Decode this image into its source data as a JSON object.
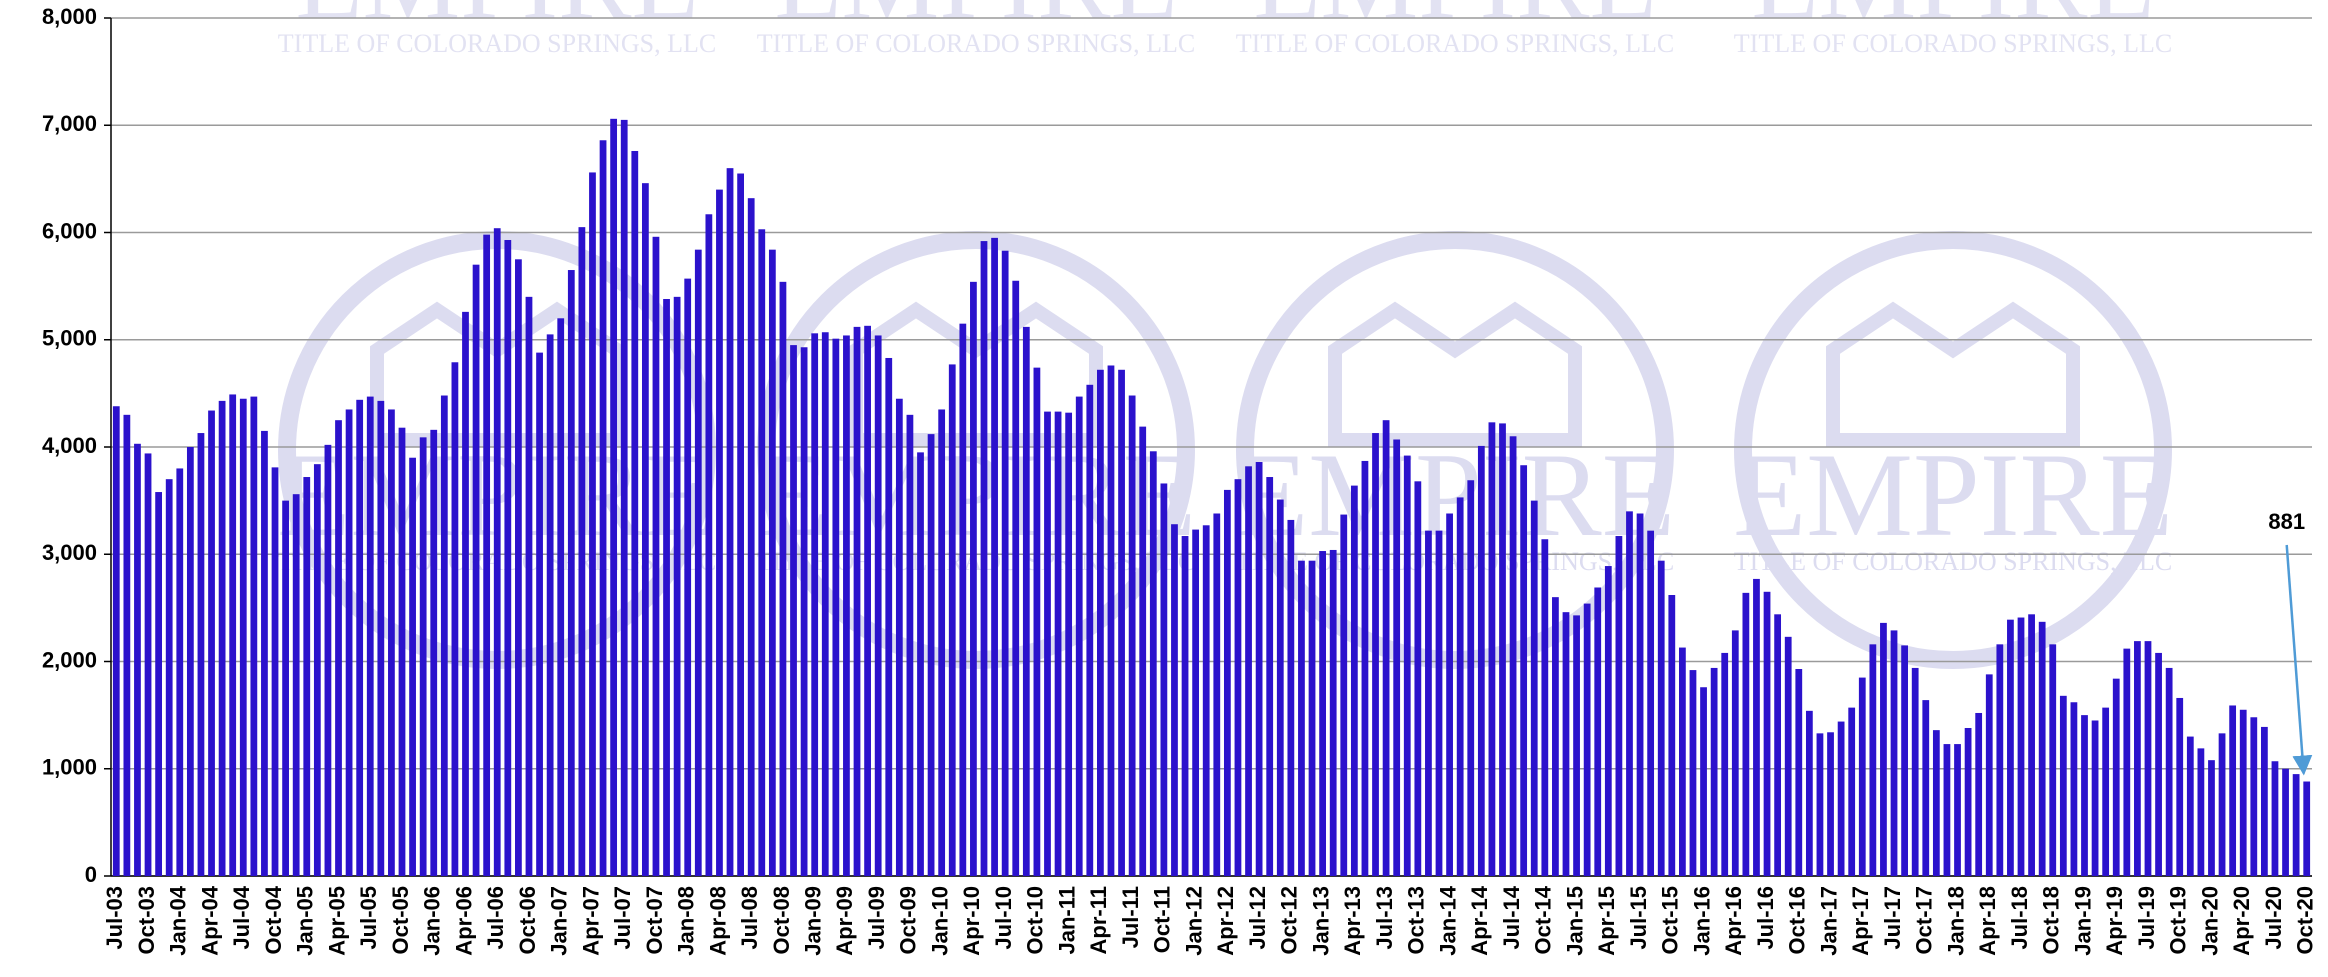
{
  "chart_data": {
    "type": "bar",
    "watermark": {
      "name": "EMPIRE",
      "sub": "TITLE OF COLORADO SPRINGS, LLC"
    },
    "annotation": "881",
    "color": "#2b12cc",
    "grid": true,
    "ylim": [
      0,
      8000
    ],
    "yticks": [
      0,
      {
        "value": 1000,
        "label": "1,000"
      },
      {
        "value": 2000,
        "label": "2,000"
      },
      {
        "value": 3000,
        "label": "3,000"
      },
      {
        "value": 4000,
        "label": "4,000"
      },
      {
        "value": 5000,
        "label": "5,000"
      },
      {
        "value": 6000,
        "label": "6,000"
      },
      {
        "value": 7000,
        "label": "7,000"
      },
      {
        "value": 8000,
        "label": "8,000"
      }
    ],
    "categories": [
      "Jul-03",
      null,
      null,
      "Oct-03",
      null,
      null,
      "Jan-04",
      null,
      null,
      "Apr-04",
      null,
      null,
      "Jul-04",
      null,
      null,
      "Oct-04",
      null,
      null,
      "Jan-05",
      null,
      null,
      "Apr-05",
      null,
      null,
      "Jul-05",
      null,
      null,
      "Oct-05",
      null,
      null,
      "Jan-06",
      null,
      null,
      "Apr-06",
      null,
      null,
      "Jul-06",
      null,
      null,
      "Oct-06",
      null,
      null,
      "Jan-07",
      null,
      null,
      "Apr-07",
      null,
      null,
      "Jul-07",
      null,
      null,
      "Oct-07",
      null,
      null,
      "Jan-08",
      null,
      null,
      "Apr-08",
      null,
      null,
      "Jul-08",
      null,
      null,
      "Oct-08",
      null,
      null,
      "Jan-09",
      null,
      null,
      "Apr-09",
      null,
      null,
      "Jul-09",
      null,
      null,
      "Oct-09",
      null,
      null,
      "Jan-10",
      null,
      null,
      "Apr-10",
      null,
      null,
      "Jul-10",
      null,
      null,
      "Oct-10",
      null,
      null,
      "Jan-11",
      null,
      null,
      "Apr-11",
      null,
      null,
      "Jul-11",
      null,
      null,
      "Oct-11",
      null,
      null,
      "Jan-12",
      null,
      null,
      "Apr-12",
      null,
      null,
      "Jul-12",
      null,
      null,
      "Oct-12",
      null,
      null,
      "Jan-13",
      null,
      null,
      "Apr-13",
      null,
      null,
      "Jul-13",
      null,
      null,
      "Oct-13",
      null,
      null,
      "Jan-14",
      null,
      null,
      "Apr-14",
      null,
      null,
      "Jul-14",
      null,
      null,
      "Oct-14",
      null,
      null,
      "Jan-15",
      null,
      null,
      "Apr-15",
      null,
      null,
      "Jul-15",
      null,
      null,
      "Oct-15",
      null,
      null,
      "Jan-16",
      null,
      null,
      "Apr-16",
      null,
      null,
      "Jul-16",
      null,
      null,
      "Oct-16",
      null,
      null,
      "Jan-17",
      null,
      null,
      "Apr-17",
      null,
      null,
      "Jul-17",
      null,
      null,
      "Oct-17",
      null,
      null,
      "Jan-18",
      null,
      null,
      "Apr-18",
      null,
      null,
      "Jul-18",
      null,
      null,
      "Oct-18",
      null,
      null,
      "Jan-19",
      null,
      null,
      "Apr-19",
      null,
      null,
      "Jul-19",
      null,
      null,
      "Oct-19",
      null,
      null,
      "Jan-20",
      null,
      null,
      "Apr-20",
      null,
      null,
      "Jul-20",
      null,
      null,
      "Oct-20"
    ],
    "values": [
      4380,
      4300,
      4030,
      3940,
      3580,
      3700,
      3800,
      4000,
      4130,
      4340,
      4430,
      4490,
      4450,
      4470,
      4150,
      3810,
      3500,
      3560,
      3720,
      3840,
      4020,
      4250,
      4350,
      4440,
      4470,
      4430,
      4350,
      4180,
      3900,
      4090,
      4160,
      4480,
      4790,
      5260,
      5700,
      5980,
      6040,
      5930,
      5750,
      5400,
      4880,
      5050,
      5200,
      5650,
      6050,
      6560,
      6860,
      7060,
      7050,
      6760,
      6460,
      5960,
      5380,
      5400,
      5570,
      5840,
      6170,
      6400,
      6600,
      6550,
      6320,
      6030,
      5840,
      5540,
      4950,
      4930,
      5060,
      5070,
      5010,
      5040,
      5120,
      5130,
      5040,
      4830,
      4450,
      4300,
      3950,
      4120,
      4350,
      4770,
      5150,
      5540,
      5920,
      5950,
      5830,
      5550,
      5120,
      4740,
      4330,
      4330,
      4320,
      4470,
      4580,
      4720,
      4760,
      4720,
      4480,
      4190,
      3960,
      3660,
      3280,
      3170,
      3230,
      3270,
      3380,
      3600,
      3700,
      3820,
      3860,
      3720,
      3510,
      3320,
      2940,
      2940,
      3030,
      3040,
      3370,
      3640,
      3870,
      4130,
      4250,
      4070,
      3920,
      3680,
      3220,
      3220,
      3380,
      3530,
      3690,
      4010,
      4230,
      4220,
      4100,
      3830,
      3500,
      3140,
      2600,
      2460,
      2430,
      2540,
      2690,
      2890,
      3170,
      3400,
      3380,
      3220,
      2940,
      2620,
      2130,
      1920,
      1760,
      1940,
      2080,
      2290,
      2640,
      2770,
      2650,
      2440,
      2230,
      1930,
      1540,
      1330,
      1340,
      1440,
      1570,
      1850,
      2160,
      2360,
      2290,
      2150,
      1940,
      1640,
      1360,
      1230,
      1230,
      1380,
      1520,
      1880,
      2160,
      2390,
      2410,
      2440,
      2370,
      2160,
      1680,
      1620,
      1500,
      1450,
      1570,
      1840,
      2120,
      2190,
      2190,
      2080,
      1940,
      1660,
      1300,
      1190,
      1080,
      1330,
      1590,
      1550,
      1480,
      1390,
      1070,
      1000,
      950,
      881
    ]
  }
}
